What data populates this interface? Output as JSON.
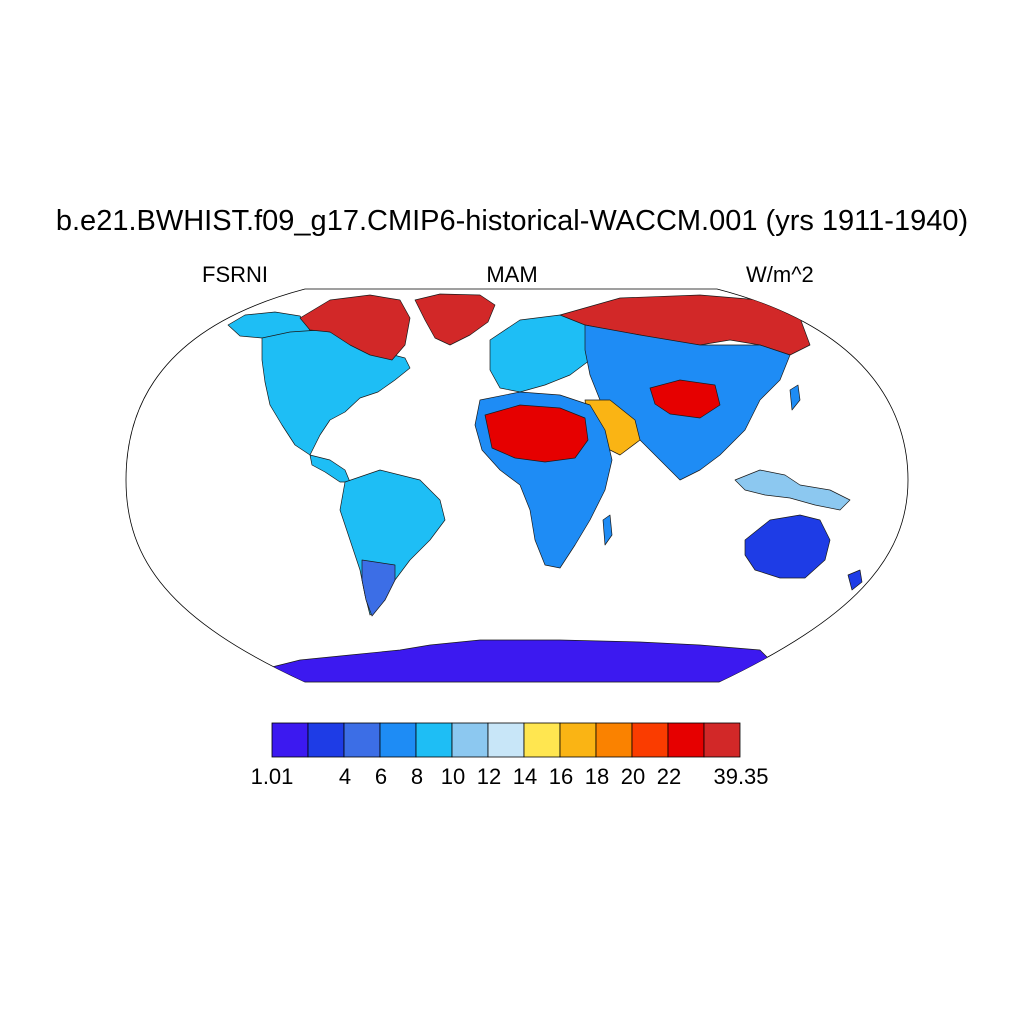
{
  "title": "b.e21.BWHIST.f09_g17.CMIP6-historical-WACCM.001 (yrs 1911-1940)",
  "left_label": "FSRNI",
  "center_label": "MAM",
  "right_label": "W/m^2",
  "colorbar": {
    "colors": [
      "#3c19f0",
      "#1e3ce6",
      "#3c6ee6",
      "#1e8cf5",
      "#1ebef5",
      "#8cc8f0",
      "#c8e6f8",
      "#ffe650",
      "#fab414",
      "#fa8200",
      "#fa3c00",
      "#e60000",
      "#d22828"
    ],
    "labels": [
      "1.01",
      "4",
      "6",
      "8",
      "10",
      "12",
      "14",
      "16",
      "18",
      "20",
      "22",
      "39.35"
    ]
  },
  "regions": [
    {
      "name": "greenland",
      "level": 12
    },
    {
      "name": "canadian-arctic",
      "level": 12
    },
    {
      "name": "alaska",
      "level": 4
    },
    {
      "name": "north-america",
      "level": 4
    },
    {
      "name": "central-america",
      "level": 4
    },
    {
      "name": "south-america",
      "level": 4
    },
    {
      "name": "patagonia",
      "level": 2
    },
    {
      "name": "europe",
      "level": 4
    },
    {
      "name": "siberia",
      "level": 12
    },
    {
      "name": "asia",
      "level": 3
    },
    {
      "name": "tibet",
      "level": 11
    },
    {
      "name": "africa",
      "level": 3
    },
    {
      "name": "sahara",
      "level": 11
    },
    {
      "name": "arabia",
      "level": 8
    },
    {
      "name": "maritime-continent",
      "level": 5
    },
    {
      "name": "australia",
      "level": 1
    },
    {
      "name": "antarctica",
      "level": 0
    }
  ]
}
